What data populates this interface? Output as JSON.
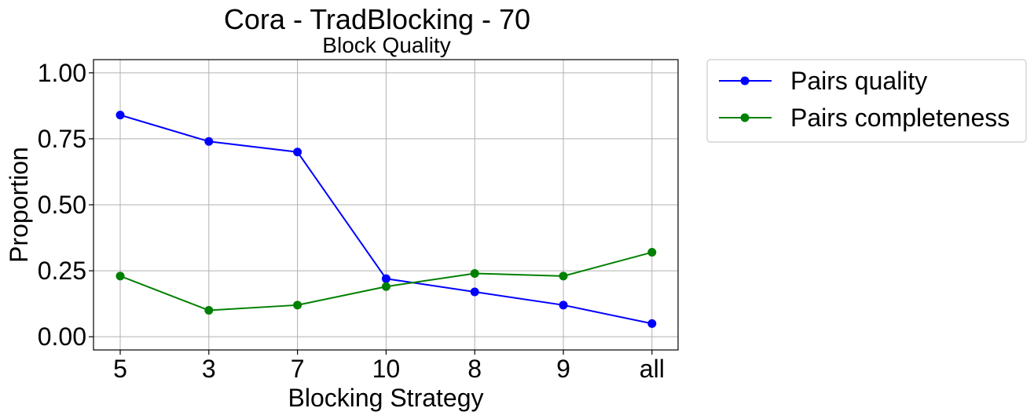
{
  "chart_data": {
    "type": "line",
    "title": "Cora - TradBlocking - 70",
    "subtitle": "Block Quality",
    "xlabel": "Blocking Strategy",
    "ylabel": "Proportion",
    "categories": [
      "5",
      "3",
      "7",
      "10",
      "8",
      "9",
      "all"
    ],
    "ylim": [
      -0.05,
      1.05
    ],
    "yticks": [
      0.0,
      0.25,
      0.5,
      0.75,
      1.0
    ],
    "ytick_labels": [
      "0.00",
      "0.25",
      "0.50",
      "0.75",
      "1.00"
    ],
    "grid": true,
    "legend_position": "outside-right-top",
    "series": [
      {
        "name": "Pairs quality",
        "color": "#0000ff",
        "values": [
          0.84,
          0.74,
          0.7,
          0.22,
          0.17,
          0.12,
          0.05
        ]
      },
      {
        "name": "Pairs completeness",
        "color": "#008000",
        "values": [
          0.23,
          0.1,
          0.12,
          0.19,
          0.24,
          0.23,
          0.32
        ]
      }
    ]
  }
}
